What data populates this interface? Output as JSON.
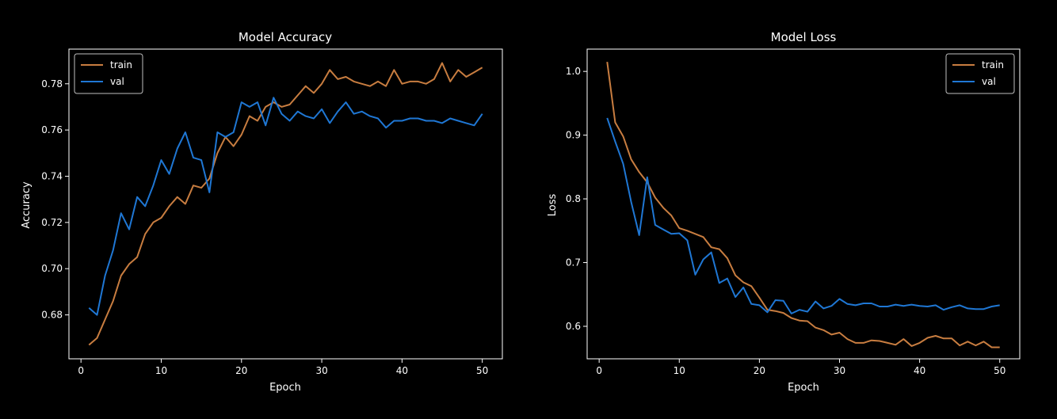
{
  "chart_data": [
    {
      "type": "line",
      "title": "Model Accuracy",
      "xlabel": "Epoch",
      "ylabel": "Accuracy",
      "xlim": [
        -1.5,
        52.5
      ],
      "ylim": [
        0.661,
        0.795
      ],
      "xticks": [
        0,
        10,
        20,
        30,
        40,
        50
      ],
      "yticks": [
        0.68,
        0.7,
        0.72,
        0.74,
        0.76,
        0.78
      ],
      "ytick_decimals": 2,
      "legend_position": "top-left",
      "x": [
        1,
        2,
        3,
        4,
        5,
        6,
        7,
        8,
        9,
        10,
        11,
        12,
        13,
        14,
        15,
        16,
        17,
        18,
        19,
        20,
        21,
        22,
        23,
        24,
        25,
        26,
        27,
        28,
        29,
        30,
        31,
        32,
        33,
        34,
        35,
        36,
        37,
        38,
        39,
        40,
        41,
        42,
        43,
        44,
        45,
        46,
        47,
        48,
        49,
        50
      ],
      "series": [
        {
          "name": "train",
          "color": "#c87d40",
          "values": [
            0.667,
            0.67,
            0.678,
            0.686,
            0.697,
            0.702,
            0.705,
            0.715,
            0.72,
            0.722,
            0.727,
            0.731,
            0.728,
            0.736,
            0.735,
            0.739,
            0.75,
            0.757,
            0.753,
            0.758,
            0.766,
            0.764,
            0.77,
            0.772,
            0.77,
            0.771,
            0.775,
            0.779,
            0.776,
            0.78,
            0.786,
            0.782,
            0.783,
            0.781,
            0.78,
            0.779,
            0.781,
            0.779,
            0.786,
            0.78,
            0.781,
            0.781,
            0.78,
            0.782,
            0.789,
            0.781,
            0.786,
            0.783,
            0.785,
            0.787
          ]
        },
        {
          "name": "val",
          "color": "#1f77d4",
          "values": [
            0.683,
            0.68,
            0.697,
            0.708,
            0.724,
            0.717,
            0.731,
            0.727,
            0.736,
            0.747,
            0.741,
            0.752,
            0.759,
            0.748,
            0.747,
            0.733,
            0.759,
            0.757,
            0.759,
            0.772,
            0.77,
            0.772,
            0.762,
            0.774,
            0.767,
            0.764,
            0.768,
            0.766,
            0.765,
            0.769,
            0.763,
            0.768,
            0.772,
            0.767,
            0.768,
            0.766,
            0.765,
            0.761,
            0.764,
            0.764,
            0.765,
            0.765,
            0.764,
            0.764,
            0.763,
            0.765,
            0.764,
            0.763,
            0.762,
            0.767
          ]
        }
      ]
    },
    {
      "type": "line",
      "title": "Model Loss",
      "xlabel": "Epoch",
      "ylabel": "Loss",
      "xlim": [
        -1.5,
        52.5
      ],
      "ylim": [
        0.549,
        1.035
      ],
      "xticks": [
        0,
        10,
        20,
        30,
        40,
        50
      ],
      "yticks": [
        0.6,
        0.7,
        0.8,
        0.9,
        1.0
      ],
      "ytick_decimals": 1,
      "legend_position": "top-right",
      "x": [
        1,
        2,
        3,
        4,
        5,
        6,
        7,
        8,
        9,
        10,
        11,
        12,
        13,
        14,
        15,
        16,
        17,
        18,
        19,
        20,
        21,
        22,
        23,
        24,
        25,
        26,
        27,
        28,
        29,
        30,
        31,
        32,
        33,
        34,
        35,
        36,
        37,
        38,
        39,
        40,
        41,
        42,
        43,
        44,
        45,
        46,
        47,
        48,
        49,
        50
      ],
      "series": [
        {
          "name": "train",
          "color": "#c87d40",
          "values": [
            1.015,
            0.92,
            0.898,
            0.862,
            0.842,
            0.826,
            0.802,
            0.786,
            0.774,
            0.754,
            0.75,
            0.745,
            0.74,
            0.724,
            0.721,
            0.707,
            0.68,
            0.669,
            0.663,
            0.645,
            0.626,
            0.624,
            0.621,
            0.613,
            0.609,
            0.608,
            0.598,
            0.594,
            0.587,
            0.59,
            0.58,
            0.574,
            0.574,
            0.578,
            0.577,
            0.574,
            0.571,
            0.58,
            0.569,
            0.574,
            0.582,
            0.585,
            0.581,
            0.581,
            0.57,
            0.576,
            0.57,
            0.576,
            0.567,
            0.567
          ]
        },
        {
          "name": "val",
          "color": "#1f77d4",
          "values": [
            0.927,
            0.89,
            0.855,
            0.795,
            0.743,
            0.834,
            0.759,
            0.752,
            0.745,
            0.746,
            0.735,
            0.681,
            0.705,
            0.716,
            0.668,
            0.675,
            0.646,
            0.661,
            0.635,
            0.633,
            0.622,
            0.641,
            0.64,
            0.62,
            0.626,
            0.623,
            0.639,
            0.628,
            0.632,
            0.643,
            0.635,
            0.633,
            0.636,
            0.636,
            0.631,
            0.631,
            0.634,
            0.632,
            0.634,
            0.632,
            0.631,
            0.633,
            0.626,
            0.63,
            0.633,
            0.628,
            0.627,
            0.627,
            0.631,
            0.633
          ]
        }
      ]
    }
  ]
}
